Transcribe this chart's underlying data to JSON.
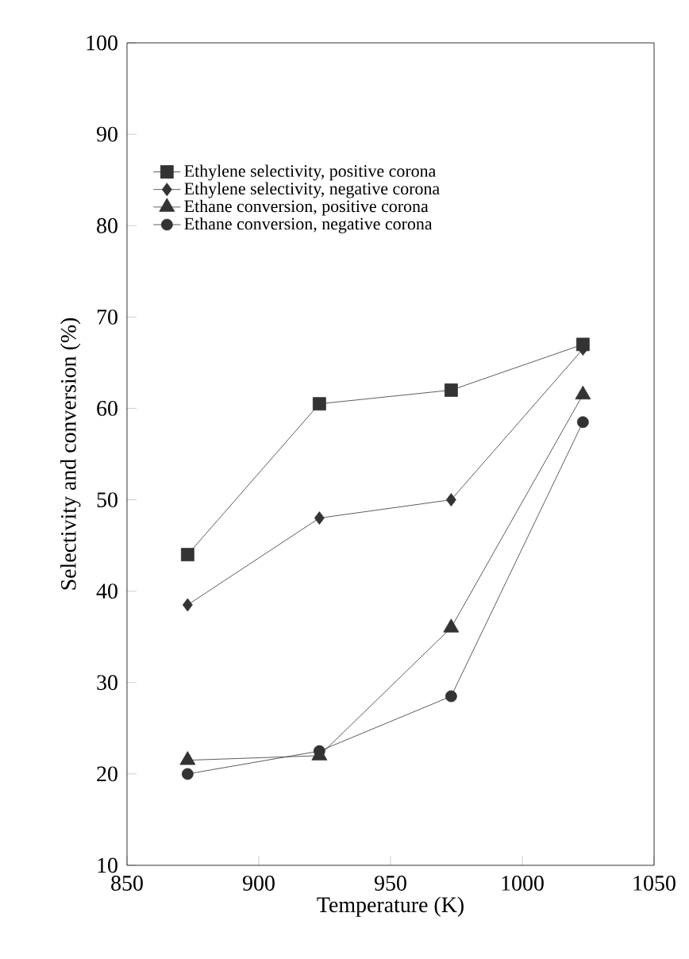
{
  "chart_data": {
    "type": "line",
    "xlabel": "Temperature (K)",
    "ylabel": "Selectivity and conversion (%)",
    "x": [
      873,
      923,
      973,
      1023
    ],
    "series": [
      {
        "name": "Ethylene selectivity, positive corona",
        "color": "#333333",
        "marker": "square",
        "values": [
          44,
          60.5,
          62,
          67
        ]
      },
      {
        "name": "Ethylene selectivity, negative corona",
        "color": "#333333",
        "marker": "diamond",
        "values": [
          38.5,
          48,
          50,
          66.5
        ]
      },
      {
        "name": "Ethane conversion, positive corona",
        "color": "#333333",
        "marker": "triangle",
        "values": [
          21.5,
          22,
          36,
          61.5
        ]
      },
      {
        "name": "Ethane conversion, negative corona",
        "color": "#333333",
        "marker": "circle",
        "values": [
          20,
          22.5,
          28.5,
          58.5
        ]
      }
    ],
    "xlim": [
      850,
      1050
    ],
    "xticks": [
      850,
      900,
      950,
      1000,
      1050
    ],
    "ylim": [
      10,
      100
    ],
    "yticks": [
      10,
      20,
      30,
      40,
      50,
      60,
      70,
      80,
      90,
      100
    ],
    "grid": false,
    "legend": "top left",
    "line_style": "solid"
  }
}
